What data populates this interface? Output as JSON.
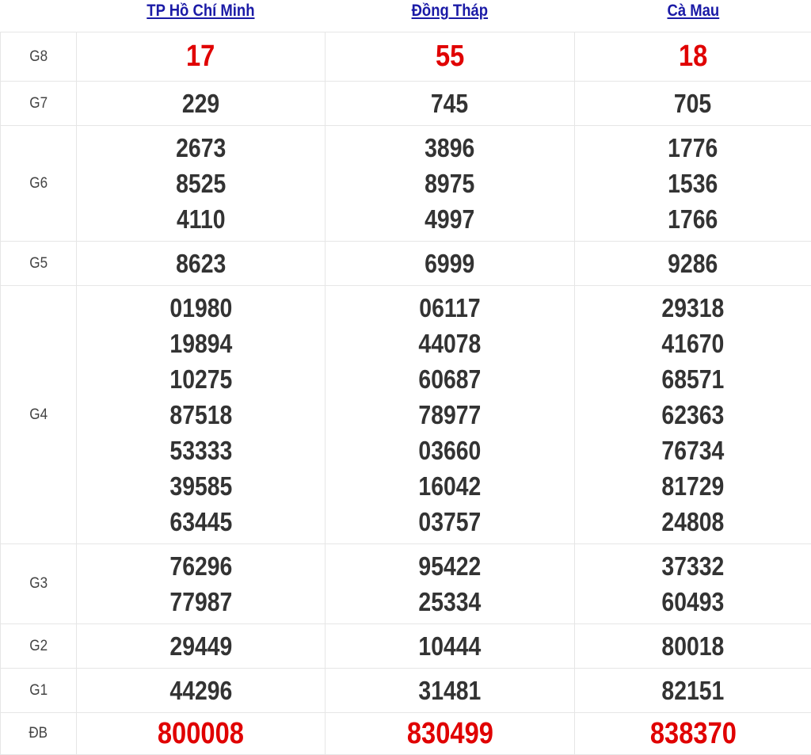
{
  "provinces": [
    "TP Hồ Chí Minh",
    "Đồng Tháp",
    "Cà Mau"
  ],
  "accent_color": "#e00000",
  "link_color": "#1a1aa6",
  "prizes": [
    {
      "label": "G8",
      "highlight": true,
      "values": [
        [
          "17"
        ],
        [
          "55"
        ],
        [
          "18"
        ]
      ]
    },
    {
      "label": "G7",
      "values": [
        [
          "229"
        ],
        [
          "745"
        ],
        [
          "705"
        ]
      ]
    },
    {
      "label": "G6",
      "values": [
        [
          "2673",
          "8525",
          "4110"
        ],
        [
          "3896",
          "8975",
          "4997"
        ],
        [
          "1776",
          "1536",
          "1766"
        ]
      ]
    },
    {
      "label": "G5",
      "values": [
        [
          "8623"
        ],
        [
          "6999"
        ],
        [
          "9286"
        ]
      ]
    },
    {
      "label": "G4",
      "values": [
        [
          "01980",
          "19894",
          "10275",
          "87518",
          "53333",
          "39585",
          "63445"
        ],
        [
          "06117",
          "44078",
          "60687",
          "78977",
          "03660",
          "16042",
          "03757"
        ],
        [
          "29318",
          "41670",
          "68571",
          "62363",
          "76734",
          "81729",
          "24808"
        ]
      ]
    },
    {
      "label": "G3",
      "values": [
        [
          "76296",
          "77987"
        ],
        [
          "95422",
          "25334"
        ],
        [
          "37332",
          "60493"
        ]
      ]
    },
    {
      "label": "G2",
      "values": [
        [
          "29449"
        ],
        [
          "10444"
        ],
        [
          "80018"
        ]
      ]
    },
    {
      "label": "G1",
      "values": [
        [
          "44296"
        ],
        [
          "31481"
        ],
        [
          "82151"
        ]
      ]
    },
    {
      "label": "ĐB",
      "highlight": true,
      "values": [
        [
          "800008"
        ],
        [
          "830499"
        ],
        [
          "838370"
        ]
      ]
    }
  ]
}
